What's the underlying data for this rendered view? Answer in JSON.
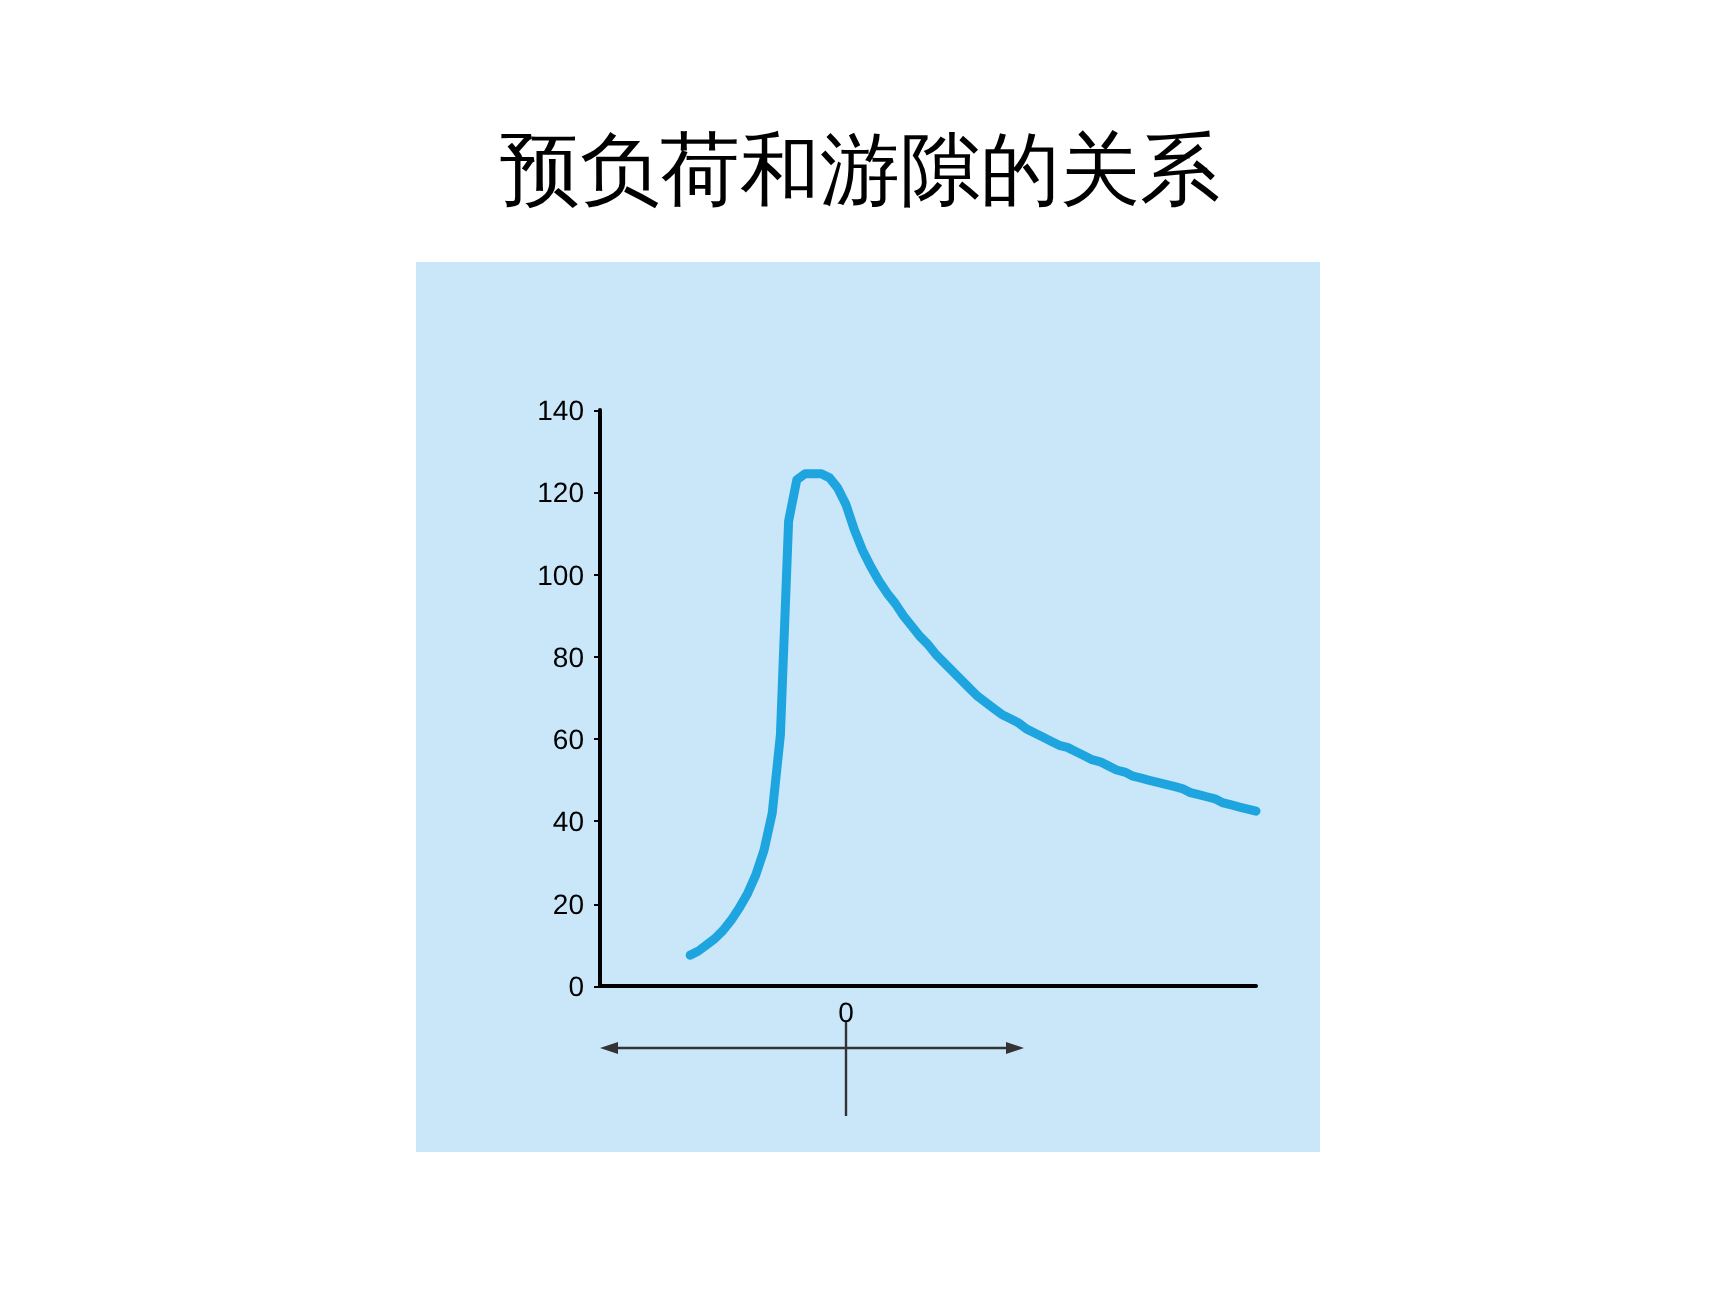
{
  "chart_data": {
    "type": "line",
    "title": "预负荷和游隙的关系",
    "categories": [
      null,
      null,
      null,
      null,
      null,
      null,
      null,
      null,
      null,
      null,
      null,
      null,
      null,
      null,
      null,
      null,
      null,
      null,
      null,
      null,
      null,
      null,
      null,
      null,
      null,
      null,
      null,
      null,
      null,
      null,
      "0",
      null,
      null,
      null,
      null,
      null,
      null,
      null,
      null,
      null,
      null,
      null,
      null,
      null,
      null,
      null,
      null,
      null,
      null,
      null,
      null,
      null,
      null,
      null,
      null,
      null,
      null,
      null,
      null,
      null,
      null,
      null,
      null,
      null,
      null,
      null,
      null,
      null,
      null,
      null,
      null,
      null,
      null,
      null,
      null,
      null,
      null,
      null,
      null,
      null,
      null
    ],
    "values": [
      null,
      null,
      null,
      null,
      null,
      null,
      null,
      null,
      null,
      null,
      null,
      7.5,
      8.5,
      10,
      11.5,
      13.5,
      16,
      19,
      22.5,
      27,
      33,
      42,
      61,
      113,
      123,
      124.5,
      124.5,
      124.5,
      123.5,
      121,
      117,
      111,
      106,
      102,
      98.5,
      95.5,
      93,
      90,
      87.5,
      85,
      83,
      80.5,
      78.5,
      76.5,
      74.5,
      72.5,
      70.5,
      69,
      67.5,
      66,
      65,
      64,
      62.5,
      61.5,
      60.5,
      59.5,
      58.5,
      58,
      57,
      56,
      55,
      54.5,
      53.5,
      52.5,
      52,
      51,
      50.5,
      50,
      49.5,
      49,
      48.5,
      48,
      47,
      46.5,
      46,
      45.5,
      44.5,
      44,
      43.5,
      43,
      42.5
    ],
    "color": "#1ea5e0",
    "ylim": [
      0,
      140
    ],
    "yticks": [
      0,
      20,
      40,
      60,
      80,
      100,
      120,
      140
    ],
    "line_style": "solid"
  }
}
